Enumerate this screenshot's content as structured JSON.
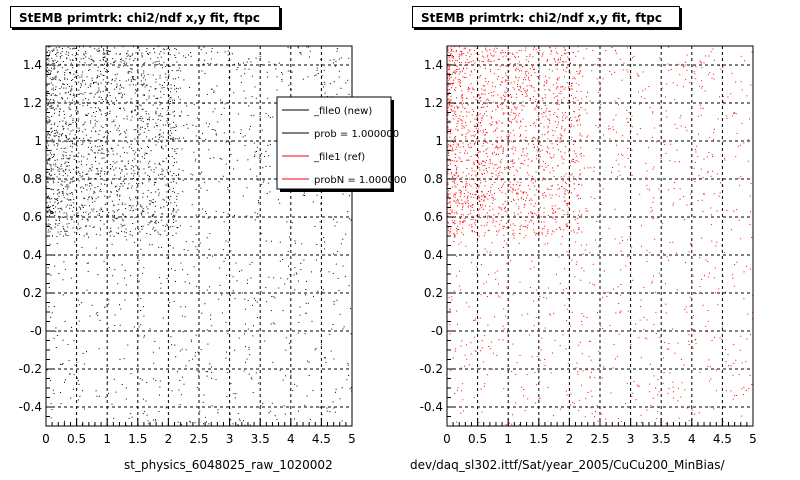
{
  "chart_data": [
    {
      "type": "scatter",
      "title": "StEMB primtrk: chi2/ndf x,y fit, ftpc",
      "xlabel": "st_physics_6048025_raw_1020002",
      "ylabel": "",
      "xlim": [
        0,
        5
      ],
      "ylim": [
        -0.5,
        1.5
      ],
      "x_ticks": [
        "0",
        "0.5",
        "1",
        "1.5",
        "2",
        "2.5",
        "3",
        "3.5",
        "4",
        "4.5",
        "5"
      ],
      "y_ticks": [
        "-0.4",
        "-0.2",
        "-0",
        "0.2",
        "0.4",
        "0.6",
        "0.8",
        "1",
        "1.2",
        "1.4"
      ],
      "grid": true,
      "marker_color": "#000000",
      "point_density": "dense near x 0-2 and y 0.5-1.5, sparse elsewhere",
      "legend": {
        "placement": "top-right",
        "entries": [
          {
            "label": "_file0 (new)",
            "color": "#000000"
          },
          {
            "label": "prob = 1.000000",
            "color": "#000000"
          },
          {
            "label": "_file1 (ref)",
            "color": "#ff0000"
          },
          {
            "label": "probN = 1.000000",
            "color": "#ff0000"
          }
        ]
      }
    },
    {
      "type": "scatter",
      "title": "StEMB primtrk: chi2/ndf x,y fit, ftpc",
      "xlabel": "dev/daq_sl302.ittf/Sat/year_2005/CuCu200_MinBias/",
      "ylabel": "",
      "xlim": [
        0,
        5
      ],
      "ylim": [
        -0.5,
        1.5
      ],
      "x_ticks": [
        "0",
        "0.5",
        "1",
        "1.5",
        "2",
        "2.5",
        "3",
        "3.5",
        "4",
        "4.5",
        "5"
      ],
      "y_ticks": [
        "-0.4",
        "-0.2",
        "-0",
        "0.2",
        "0.4",
        "0.6",
        "0.8",
        "1",
        "1.2",
        "1.4"
      ],
      "grid": true,
      "marker_color": "#ff0000",
      "point_density": "dense near x 0-2 and y 0.5-1.5, sparse elsewhere"
    }
  ]
}
